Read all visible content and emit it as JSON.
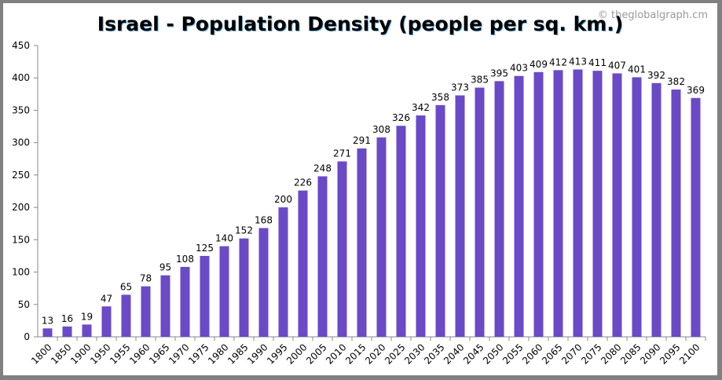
{
  "chart_data": {
    "type": "bar",
    "title": "Israel - Population Density (people per sq. km.)",
    "watermark": "© theglobalgraph.cm",
    "categories": [
      "1800",
      "1850",
      "1900",
      "1950",
      "1955",
      "1960",
      "1965",
      "1970",
      "1975",
      "1980",
      "1985",
      "1990",
      "1995",
      "2000",
      "2005",
      "2010",
      "2015",
      "2020",
      "2025",
      "2030",
      "2035",
      "2040",
      "2045",
      "2050",
      "2055",
      "2060",
      "2065",
      "2070",
      "2075",
      "2080",
      "2085",
      "2090",
      "2095",
      "2100"
    ],
    "values": [
      13,
      16,
      19,
      47,
      65,
      78,
      95,
      108,
      125,
      140,
      152,
      168,
      200,
      226,
      248,
      271,
      291,
      308,
      326,
      342,
      358,
      373,
      385,
      395,
      403,
      409,
      412,
      413,
      411,
      407,
      401,
      392,
      382,
      369
    ],
    "ylim": [
      0,
      450
    ],
    "yticks": [
      0,
      50,
      100,
      150,
      200,
      250,
      300,
      350,
      400,
      450
    ],
    "grid": false,
    "legend": "none",
    "bar_color": "#6a4ac6"
  }
}
